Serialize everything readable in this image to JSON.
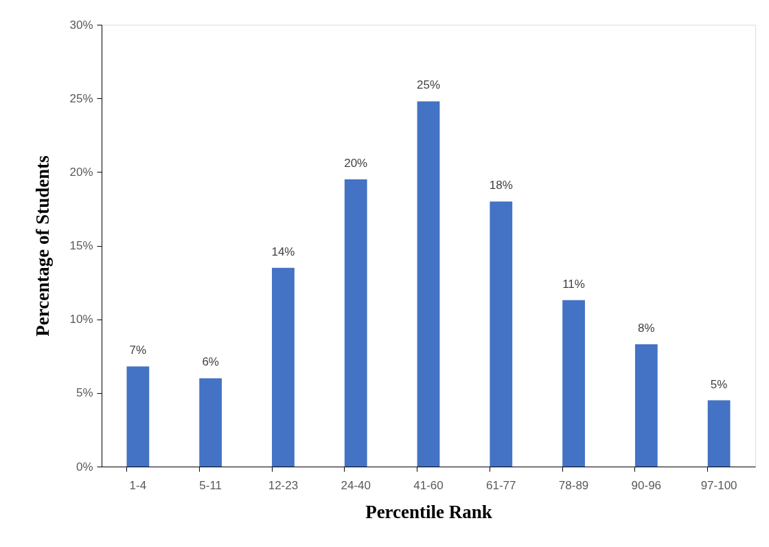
{
  "chart_data": {
    "type": "bar",
    "xlabel": "Percentile Rank",
    "ylabel": "Percentage of Students",
    "categories": [
      "1-4",
      "5-11",
      "12-23",
      "24-40",
      "41-60",
      "61-77",
      "78-89",
      "90-96",
      "97-100"
    ],
    "values": [
      6.8,
      6.0,
      13.5,
      19.5,
      24.8,
      18.0,
      11.3,
      8.3,
      4.5
    ],
    "value_labels": [
      "7%",
      "6%",
      "14%",
      "20%",
      "25%",
      "18%",
      "11%",
      "8%",
      "5%"
    ],
    "color": "#4472c4",
    "ylim": [
      0,
      30
    ],
    "yticks": [
      {
        "value": 0,
        "label": "0%"
      },
      {
        "value": 5,
        "label": "5%"
      },
      {
        "value": 10,
        "label": "10%"
      },
      {
        "value": 15,
        "label": "15%"
      },
      {
        "value": 20,
        "label": "20%"
      },
      {
        "value": 25,
        "label": "25%"
      },
      {
        "value": 30,
        "label": "30%"
      }
    ],
    "grid": false
  }
}
